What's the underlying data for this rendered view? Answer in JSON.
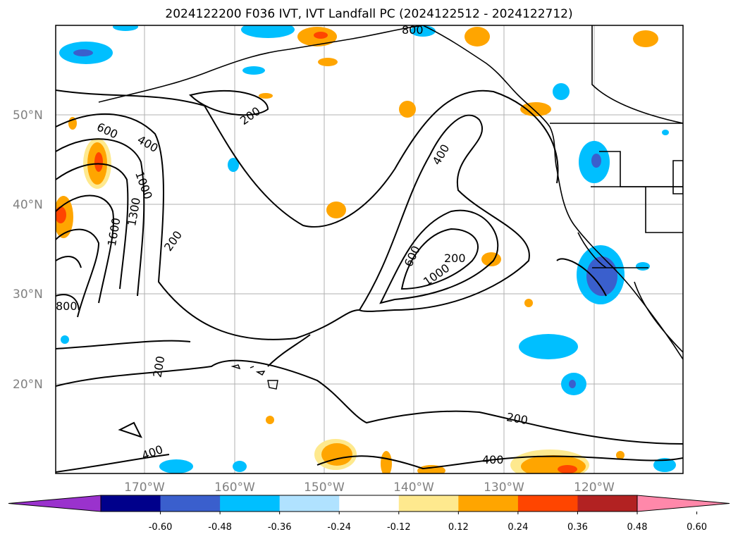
{
  "title": "2024122200 F036 IVT, IVT Landfall PC (2024122512 - 2024122712)",
  "lat_labels": [
    "50°N",
    "40°N",
    "30°N",
    "20°N"
  ],
  "lon_labels": [
    "170°W",
    "160°W",
    "150°W",
    "140°W",
    "130°W",
    "120°W"
  ],
  "colorbar": {
    "ticks": [
      "-0.60",
      "-0.48",
      "-0.36",
      "-0.24",
      "-0.12",
      "0.12",
      "0.24",
      "0.36",
      "0.48",
      "0.60"
    ],
    "colors": [
      "#9a32cd",
      "#00008b",
      "#3a5fcd",
      "#00bfff",
      "#b0e2ff",
      "#ffffff",
      "#fee98e",
      "#ffa500",
      "#ff4500",
      "#b22222",
      "#ff88aa"
    ]
  },
  "contour_labels": [
    "200",
    "200",
    "200",
    "200",
    "200",
    "400",
    "400",
    "400",
    "400",
    "600",
    "600",
    "800",
    "1000",
    "1000",
    "1300",
    "1600",
    "800"
  ]
}
